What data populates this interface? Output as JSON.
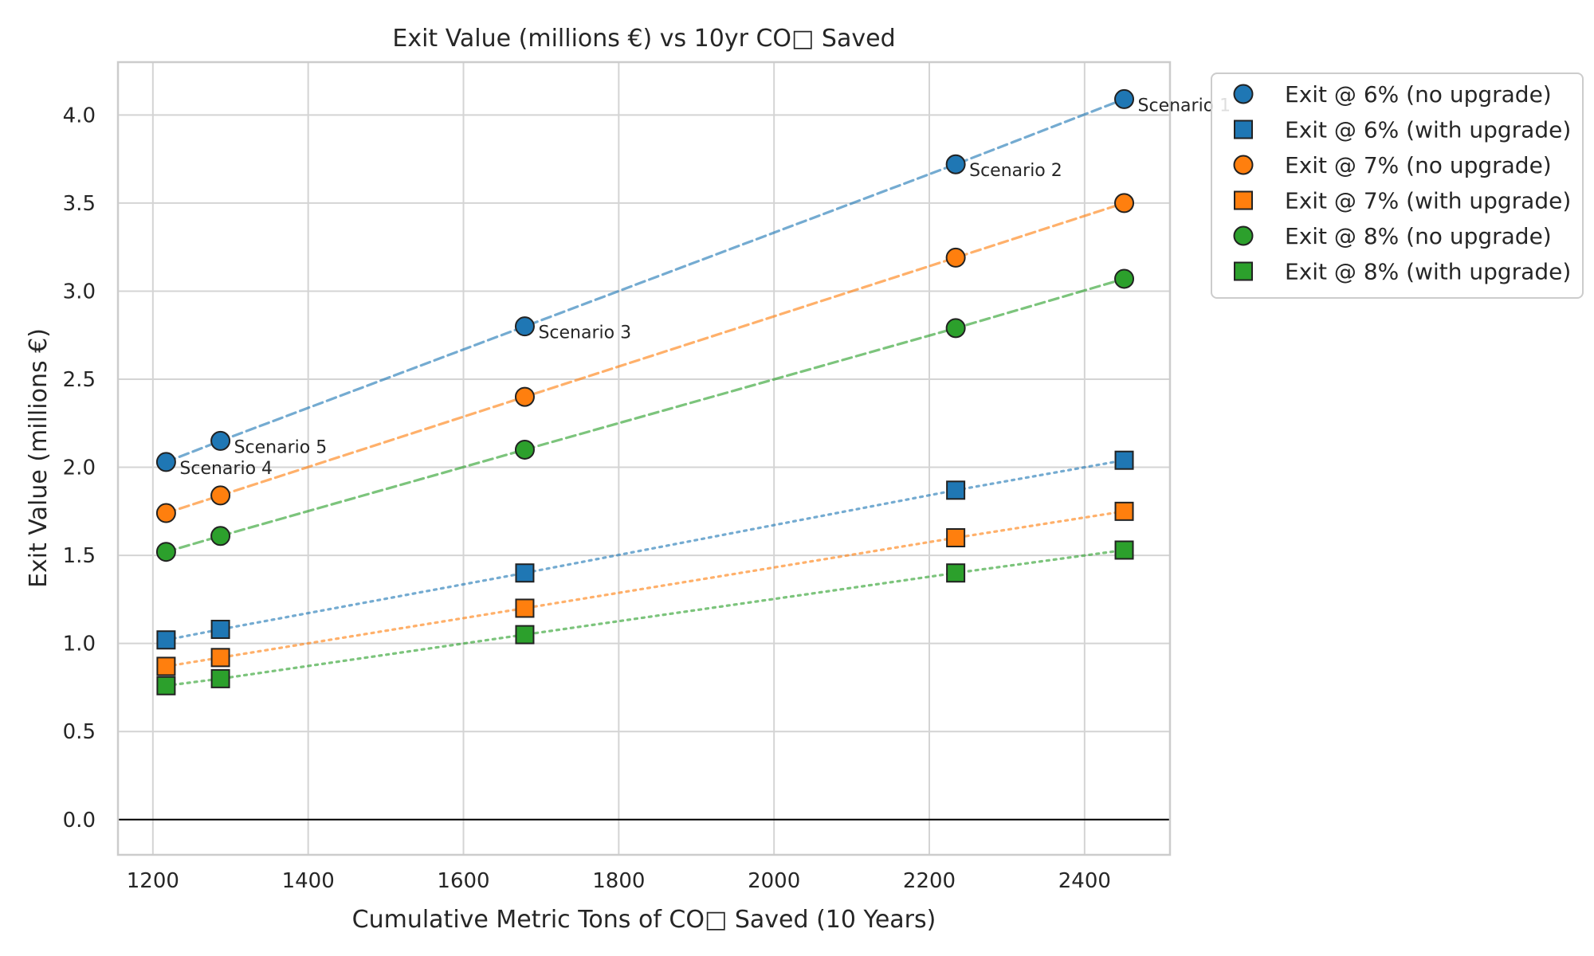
{
  "chart_data": {
    "type": "scatter",
    "title": "Exit Value (millions €) vs 10yr CO□ Saved",
    "xlabel": "Cumulative Metric Tons of CO□ Saved (10 Years)",
    "ylabel": "Exit Value (millions €)",
    "xlim": [
      1155,
      2510
    ],
    "ylim": [
      -0.2,
      4.3
    ],
    "xticks": [
      1200,
      1400,
      1600,
      1800,
      2000,
      2200,
      2400
    ],
    "yticks": [
      0.0,
      0.5,
      1.0,
      1.5,
      2.0,
      2.5,
      3.0,
      3.5,
      4.0
    ],
    "grid": true,
    "legend_position": "outside-top-right",
    "x": [
      1217,
      1287,
      1679,
      2234,
      2451
    ],
    "series": [
      {
        "name": "Exit @ 6% (no upgrade)",
        "marker": "circle",
        "line": "dashed",
        "color": "#1f77b4",
        "values": [
          2.03,
          2.15,
          2.8,
          3.72,
          4.09
        ]
      },
      {
        "name": "Exit @ 6% (with upgrade)",
        "marker": "square",
        "line": "dotted",
        "color": "#1f77b4",
        "values": [
          1.02,
          1.08,
          1.4,
          1.87,
          2.04
        ]
      },
      {
        "name": "Exit @ 7% (no upgrade)",
        "marker": "circle",
        "line": "dashed",
        "color": "#ff7f0e",
        "values": [
          1.74,
          1.84,
          2.4,
          3.19,
          3.5
        ]
      },
      {
        "name": "Exit @ 7% (with upgrade)",
        "marker": "square",
        "line": "dotted",
        "color": "#ff7f0e",
        "values": [
          0.87,
          0.92,
          1.2,
          1.6,
          1.75
        ]
      },
      {
        "name": "Exit @ 8% (no upgrade)",
        "marker": "circle",
        "line": "dashed",
        "color": "#2ca02c",
        "values": [
          1.52,
          1.61,
          2.1,
          2.79,
          3.07
        ]
      },
      {
        "name": "Exit @ 8% (with upgrade)",
        "marker": "square",
        "line": "dotted",
        "color": "#2ca02c",
        "values": [
          0.76,
          0.8,
          1.05,
          1.4,
          1.53
        ]
      }
    ],
    "annotations": [
      {
        "text": "Scenario 1",
        "x": 2451,
        "y": 4.09
      },
      {
        "text": "Scenario 2",
        "x": 2234,
        "y": 3.72
      },
      {
        "text": "Scenario 3",
        "x": 1679,
        "y": 2.8
      },
      {
        "text": "Scenario 4",
        "x": 1217,
        "y": 2.03
      },
      {
        "text": "Scenario 5",
        "x": 1287,
        "y": 2.15
      }
    ],
    "reference_line_y": 0
  }
}
